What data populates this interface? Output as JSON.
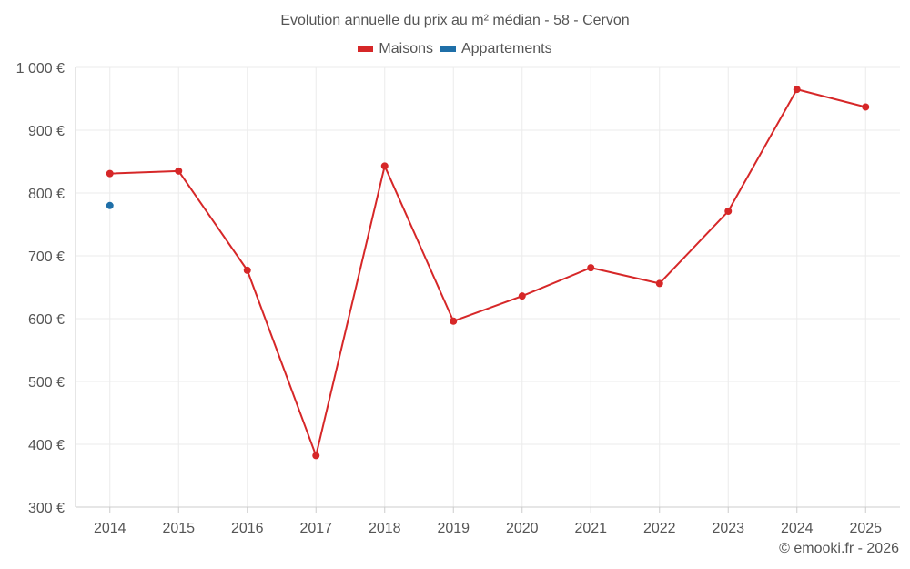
{
  "chart_data": {
    "type": "line",
    "title": "Evolution annuelle du prix au m² médian - 58 - Cervon",
    "xlabel": "",
    "ylabel": "",
    "categories": [
      "2014",
      "2015",
      "2016",
      "2017",
      "2018",
      "2019",
      "2020",
      "2021",
      "2022",
      "2023",
      "2024",
      "2025"
    ],
    "ylim": [
      300,
      1000
    ],
    "yticks": [
      300,
      400,
      500,
      600,
      700,
      800,
      900,
      1000
    ],
    "ytick_labels": [
      "300 €",
      "400 €",
      "500 €",
      "600 €",
      "700 €",
      "800 €",
      "900 €",
      "1 000 €"
    ],
    "grid": true,
    "legend_position": "top-center",
    "series": [
      {
        "name": "Maisons",
        "color": "#d62728",
        "values": [
          831,
          835,
          677,
          382,
          843,
          596,
          636,
          681,
          656,
          771,
          965,
          937
        ]
      },
      {
        "name": "Appartements",
        "color": "#1f6fa8",
        "values": [
          780,
          null,
          null,
          null,
          null,
          null,
          null,
          null,
          null,
          null,
          null,
          null
        ]
      }
    ]
  },
  "credit": "© emooki.fr - 2026"
}
